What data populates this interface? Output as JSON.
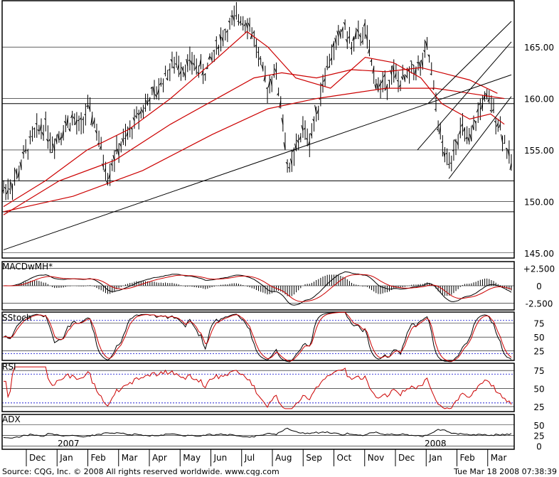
{
  "chart_data": [
    {
      "type": "ohlc-bar",
      "panel": "price",
      "ylim": [
        144.5,
        169.5
      ],
      "yticks": [
        "165.00",
        "160.00",
        "155.00",
        "150.00",
        "145.00"
      ],
      "ytick_values": [
        165,
        160,
        155,
        150,
        145
      ],
      "horizontal_levels": [
        159.5,
        152.0,
        149.0
      ],
      "close_path": [
        [
          0,
          151.2
        ],
        [
          1,
          151.5
        ],
        [
          2,
          152.5
        ],
        [
          3,
          154.5
        ],
        [
          4,
          156.0
        ],
        [
          5,
          157.0
        ],
        [
          6,
          157.5
        ],
        [
          7,
          155.5
        ],
        [
          8,
          156.5
        ],
        [
          9,
          157.5
        ],
        [
          10,
          158.0
        ],
        [
          11,
          157.0
        ],
        [
          12,
          159.0
        ],
        [
          13,
          158.0
        ],
        [
          14,
          155.0
        ],
        [
          15,
          152.5
        ],
        [
          16,
          154.5
        ],
        [
          17,
          155.5
        ],
        [
          18,
          156.5
        ],
        [
          19,
          158.0
        ],
        [
          20,
          159.0
        ],
        [
          21,
          160.0
        ],
        [
          22,
          160.5
        ],
        [
          23,
          162.0
        ],
        [
          24,
          163.0
        ],
        [
          25,
          163.5
        ],
        [
          26,
          163.0
        ],
        [
          27,
          163.5
        ],
        [
          28,
          163.0
        ],
        [
          29,
          162.5
        ],
        [
          30,
          164.0
        ],
        [
          31,
          165.5
        ],
        [
          32,
          166.5
        ],
        [
          33,
          167.5
        ],
        [
          34,
          168.0
        ],
        [
          35,
          167.5
        ],
        [
          36,
          166.0
        ],
        [
          37,
          163.0
        ],
        [
          38,
          161.0
        ],
        [
          39,
          163.0
        ],
        [
          40,
          159.0
        ],
        [
          41,
          152.5
        ],
        [
          42,
          155.0
        ],
        [
          43,
          157.0
        ],
        [
          44,
          156.0
        ],
        [
          45,
          158.5
        ],
        [
          46,
          162.0
        ],
        [
          47,
          164.0
        ],
        [
          48,
          165.5
        ],
        [
          49,
          167.0
        ],
        [
          50,
          165.0
        ],
        [
          51,
          166.0
        ],
        [
          52,
          166.5
        ],
        [
          53,
          163.0
        ],
        [
          54,
          161.0
        ],
        [
          55,
          161.5
        ],
        [
          56,
          162.5
        ],
        [
          57,
          161.5
        ],
        [
          58,
          162.0
        ],
        [
          59,
          163.0
        ],
        [
          60,
          163.0
        ],
        [
          61,
          165.0
        ],
        [
          62,
          160.0
        ],
        [
          63,
          155.5
        ],
        [
          64,
          153.5
        ],
        [
          65,
          156.0
        ],
        [
          66,
          157.0
        ],
        [
          67,
          155.5
        ],
        [
          68,
          158.0
        ],
        [
          69,
          160.0
        ],
        [
          70,
          159.5
        ],
        [
          71,
          158.0
        ],
        [
          72,
          156.0
        ],
        [
          73,
          153.5
        ]
      ],
      "close_x_range": [
        0,
        73
      ],
      "trendlines": [
        {
          "name": "long-uptrend",
          "from": [
            0,
            145.3
          ],
          "to": [
            73,
            162.3
          ]
        },
        {
          "name": "channel-upper",
          "from": [
            61,
            159.5
          ],
          "to": [
            73,
            167.5
          ]
        },
        {
          "name": "channel-lower",
          "from": [
            64,
            152.2
          ],
          "to": [
            73,
            160.2
          ]
        },
        {
          "name": "channel-mid",
          "from": [
            59.5,
            155.0
          ],
          "to": [
            73,
            165.5
          ]
        }
      ],
      "moving_averages": [
        {
          "points": [
            [
              0,
              148.7
            ],
            [
              8,
              152.0
            ],
            [
              16,
              154.0
            ],
            [
              24,
              157.5
            ],
            [
              32,
              160.5
            ],
            [
              36,
              162.0
            ],
            [
              40,
              162.5
            ],
            [
              45,
              162.0
            ],
            [
              50,
              162.8
            ],
            [
              55,
              162.6
            ],
            [
              60,
              163.0
            ],
            [
              63,
              162.5
            ],
            [
              67,
              161.8
            ],
            [
              71,
              160.5
            ]
          ],
          "color": "#cc0000"
        },
        {
          "points": [
            [
              0,
              149.5
            ],
            [
              6,
              152.0
            ],
            [
              12,
              155.0
            ],
            [
              18,
              157.0
            ],
            [
              24,
              160.0
            ],
            [
              30,
              163.5
            ],
            [
              35,
              166.5
            ],
            [
              38,
              165.0
            ],
            [
              42,
              162.0
            ],
            [
              47,
              161.0
            ],
            [
              52,
              164.0
            ],
            [
              56,
              163.5
            ],
            [
              60,
              162.0
            ],
            [
              63,
              159.5
            ],
            [
              67,
              158.0
            ],
            [
              70,
              158.5
            ],
            [
              72,
              157.5
            ]
          ],
          "color": "#cc0000"
        },
        {
          "points": [
            [
              0,
              149.0
            ],
            [
              10,
              150.5
            ],
            [
              20,
              153.0
            ],
            [
              30,
              156.5
            ],
            [
              38,
              159.0
            ],
            [
              45,
              160.0
            ],
            [
              55,
              161.0
            ],
            [
              62,
              161.0
            ],
            [
              67,
              160.5
            ],
            [
              72,
              160.0
            ]
          ],
          "color": "#cc0000"
        }
      ]
    },
    {
      "type": "line",
      "panel": "macd",
      "label": "MACDwMH*",
      "ylim": [
        -3.5,
        3.5
      ],
      "yticks": [
        "+2.500",
        "0",
        "-2.500"
      ],
      "ytick_values": [
        2.5,
        0,
        -2.5
      ]
    },
    {
      "type": "line",
      "panel": "sstoch",
      "label": "SStoch",
      "ylim": [
        8,
        95
      ],
      "yticks": [
        "75",
        "50",
        "25"
      ],
      "ytick_values": [
        75,
        50,
        25
      ],
      "levels": [
        80,
        20
      ]
    },
    {
      "type": "line",
      "panel": "rsi",
      "label": "RSI",
      "ylim": [
        18,
        85
      ],
      "yticks": [
        "75",
        "50",
        "25"
      ],
      "ytick_values": [
        75,
        50,
        25
      ],
      "levels": [
        70,
        30
      ]
    },
    {
      "type": "line",
      "panel": "adx",
      "label": "ADX",
      "ylim": [
        -8,
        75
      ],
      "yticks": [
        "50",
        "25",
        "0"
      ],
      "ytick_values": [
        50,
        25,
        0
      ]
    }
  ],
  "time_axis": {
    "months": [
      "Dec",
      "Jan",
      "Feb",
      "Mar",
      "Apr",
      "May",
      "Jun",
      "Jul",
      "Aug",
      "Sep",
      "Oct",
      "Nov",
      "Dec",
      "Jan",
      "Feb",
      "Mar"
    ],
    "years": [
      "2007",
      "2008"
    ]
  },
  "footer": {
    "source": "Source: CQG, Inc. © 2008 All rights reserved worldwide. www.cqg.com",
    "timestamp": "Tue Mar 18 2008 07:38:39"
  },
  "colors": {
    "price": "#000000",
    "signal": "#cc0000",
    "grid": "#000000",
    "dotted": "#0000cc"
  }
}
